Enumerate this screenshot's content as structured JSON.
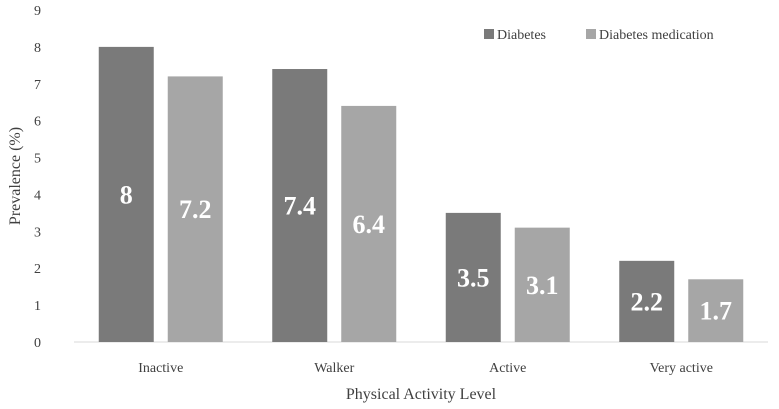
{
  "chart_data": {
    "type": "bar",
    "title": "",
    "xlabel": "Physical Activity Level",
    "ylabel": "Prevalence (%)",
    "ylim": [
      0,
      9
    ],
    "yticks": [
      0,
      1,
      2,
      3,
      4,
      5,
      6,
      7,
      8,
      9
    ],
    "grid": false,
    "legend_position": "top-right",
    "categories": [
      "Inactive",
      "Walker",
      "Active",
      "Very active"
    ],
    "series": [
      {
        "name": "Diabetes",
        "color": "#7a7a7a",
        "values": [
          8,
          7.4,
          3.5,
          2.2
        ],
        "labels": [
          "8",
          "7.4",
          "3.5",
          "2.2"
        ]
      },
      {
        "name": "Diabetes medication",
        "color": "#a6a6a6",
        "values": [
          7.2,
          6.4,
          3.1,
          1.7
        ],
        "labels": [
          "7.2",
          "6.4",
          "3.1",
          "1.7"
        ]
      }
    ]
  }
}
